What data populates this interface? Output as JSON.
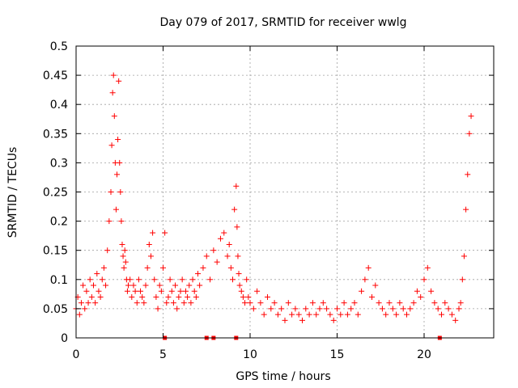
{
  "chart_data": {
    "type": "scatter",
    "title": "Day 079 of 2017, SRMTID for receiver wwlg",
    "xlabel": "GPS time / hours",
    "ylabel": "SRMTID / TECUs",
    "xlim": [
      0,
      24
    ],
    "ylim": [
      0,
      0.5
    ],
    "xticks": [
      "0",
      "5",
      "10",
      "15",
      "20"
    ],
    "yticks": [
      "0",
      "0.05",
      "0.1",
      "0.15",
      "0.2",
      "0.25",
      "0.3",
      "0.35",
      "0.4",
      "0.45",
      "0.5"
    ],
    "grid": true,
    "marker": "+",
    "color": "#ff0000",
    "series": [
      {
        "name": "SRMTID",
        "x": [
          0.0,
          0.1,
          0.2,
          0.3,
          0.4,
          0.5,
          0.6,
          0.7,
          0.8,
          0.9,
          1.0,
          1.1,
          1.2,
          1.3,
          1.4,
          1.5,
          1.6,
          1.7,
          1.8,
          1.9,
          2.0,
          2.05,
          2.1,
          2.15,
          2.2,
          2.25,
          2.3,
          2.35,
          2.4,
          2.45,
          2.5,
          2.55,
          2.6,
          2.65,
          2.7,
          2.75,
          2.8,
          2.85,
          2.9,
          2.95,
          3.0,
          3.1,
          3.2,
          3.3,
          3.4,
          3.5,
          3.6,
          3.7,
          3.8,
          3.9,
          4.0,
          4.1,
          4.2,
          4.3,
          4.4,
          4.5,
          4.6,
          4.7,
          4.8,
          4.9,
          5.0,
          5.1,
          5.2,
          5.3,
          5.4,
          5.5,
          5.6,
          5.7,
          5.8,
          5.9,
          6.0,
          6.1,
          6.2,
          6.3,
          6.4,
          6.5,
          6.6,
          6.7,
          6.8,
          6.9,
          7.0,
          7.1,
          7.3,
          7.5,
          7.7,
          7.9,
          8.1,
          8.3,
          8.5,
          8.7,
          8.8,
          8.9,
          9.0,
          9.1,
          9.2,
          9.25,
          9.3,
          9.35,
          9.4,
          9.5,
          9.6,
          9.7,
          9.8,
          9.9,
          10.0,
          10.2,
          10.4,
          10.6,
          10.8,
          11.0,
          11.2,
          11.4,
          11.6,
          11.8,
          12.0,
          12.2,
          12.4,
          12.6,
          12.8,
          13.0,
          13.2,
          13.4,
          13.6,
          13.8,
          14.0,
          14.2,
          14.4,
          14.6,
          14.8,
          15.0,
          15.2,
          15.4,
          15.6,
          15.8,
          16.0,
          16.2,
          16.4,
          16.6,
          16.8,
          17.0,
          17.2,
          17.4,
          17.6,
          17.8,
          18.0,
          18.2,
          18.4,
          18.6,
          18.8,
          19.0,
          19.2,
          19.4,
          19.6,
          19.8,
          20.0,
          20.2,
          20.4,
          20.6,
          20.8,
          21.0,
          21.2,
          21.4,
          21.6,
          21.8,
          22.0,
          22.1,
          22.2,
          22.3,
          22.4,
          22.5,
          22.6,
          22.7
        ],
        "y": [
          0.05,
          0.07,
          0.04,
          0.06,
          0.09,
          0.05,
          0.08,
          0.06,
          0.1,
          0.07,
          0.09,
          0.06,
          0.11,
          0.08,
          0.07,
          0.1,
          0.12,
          0.09,
          0.15,
          0.2,
          0.25,
          0.33,
          0.42,
          0.45,
          0.38,
          0.3,
          0.22,
          0.28,
          0.34,
          0.44,
          0.3,
          0.25,
          0.2,
          0.16,
          0.14,
          0.12,
          0.15,
          0.13,
          0.1,
          0.08,
          0.09,
          0.1,
          0.07,
          0.09,
          0.08,
          0.06,
          0.1,
          0.08,
          0.07,
          0.06,
          0.09,
          0.12,
          0.16,
          0.14,
          0.18,
          0.1,
          0.07,
          0.05,
          0.09,
          0.08,
          0.12,
          0.18,
          0.06,
          0.07,
          0.1,
          0.08,
          0.06,
          0.09,
          0.05,
          0.07,
          0.08,
          0.1,
          0.06,
          0.08,
          0.07,
          0.09,
          0.06,
          0.1,
          0.08,
          0.07,
          0.11,
          0.09,
          0.12,
          0.14,
          0.1,
          0.15,
          0.13,
          0.17,
          0.18,
          0.14,
          0.16,
          0.12,
          0.1,
          0.22,
          0.26,
          0.19,
          0.14,
          0.11,
          0.09,
          0.08,
          0.07,
          0.06,
          0.1,
          0.07,
          0.06,
          0.05,
          0.08,
          0.06,
          0.04,
          0.07,
          0.05,
          0.06,
          0.04,
          0.05,
          0.03,
          0.06,
          0.04,
          0.05,
          0.04,
          0.03,
          0.05,
          0.04,
          0.06,
          0.04,
          0.05,
          0.06,
          0.05,
          0.04,
          0.03,
          0.05,
          0.04,
          0.06,
          0.04,
          0.05,
          0.06,
          0.04,
          0.08,
          0.1,
          0.12,
          0.07,
          0.09,
          0.06,
          0.05,
          0.04,
          0.06,
          0.05,
          0.04,
          0.06,
          0.05,
          0.04,
          0.05,
          0.06,
          0.08,
          0.07,
          0.1,
          0.12,
          0.08,
          0.06,
          0.05,
          0.04,
          0.06,
          0.05,
          0.04,
          0.03,
          0.05,
          0.06,
          0.1,
          0.14,
          0.22,
          0.28,
          0.35,
          0.38
        ],
        "zero_markers_x": [
          5.1,
          7.5,
          7.9,
          9.2,
          20.9
        ]
      }
    ]
  }
}
